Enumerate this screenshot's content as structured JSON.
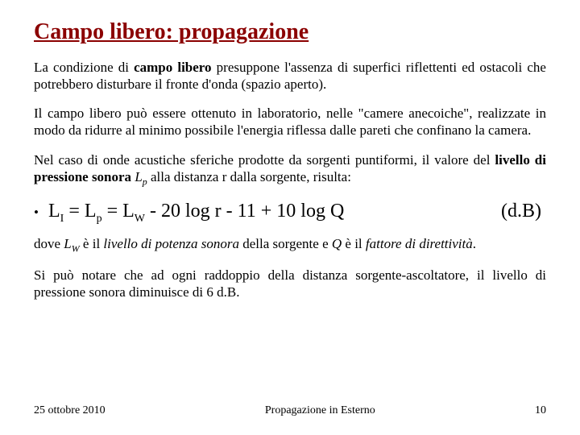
{
  "colors": {
    "title": "#8b0000",
    "text": "#000000",
    "background": "#ffffff"
  },
  "fonts": {
    "family": "Times New Roman",
    "title_size_pt": 28,
    "body_size_pt": 17,
    "equation_size_pt": 24,
    "footer_size_pt": 14
  },
  "title": "Campo libero: propagazione",
  "p1a": "La condizione di ",
  "p1b": "campo libero",
  "p1c": " presuppone l'assenza di superfici riflettenti ed ostacoli che potrebbero disturbare il fronte d'onda (spazio aperto).",
  "p2": "Il campo libero può essere ottenuto in laboratorio, nelle \"camere anecoiche\", realizzate in modo da ridurre al minimo possibile l'energia riflessa dalle pareti che confinano la camera.",
  "p3a": "Nel caso di onde acustiche sferiche prodotte da sorgenti puntiformi, il valore del ",
  "p3b": "livello di pressione sonora",
  "p3c": " ",
  "p3d": "L",
  "p3e": "p",
  "p3f": " alla distanza r dalla sorgente, risulta:",
  "bullet": "•",
  "eq": {
    "L": "L",
    "I": "I",
    "eq1": " = ",
    "p": "p",
    "W": "W",
    "mid": " - 20 log r - 11 + 10 log Q"
  },
  "db": "(d.B)",
  "p4a": "dove ",
  "p4b": "L",
  "p4c": "W",
  "p4d": " è il ",
  "p4e": "livello di potenza sonora",
  "p4f": " della sorgente e ",
  "p4g": "Q",
  "p4h": " è il ",
  "p4i": "fattore di direttività",
  "p4j": ".",
  "p5": "Si può notare che ad ogni raddoppio della distanza sorgente-ascoltatore, il livello di pressione sonora diminuisce di 6 d.B.",
  "footer": {
    "date": "25 ottobre 2010",
    "center": "Propagazione in Esterno",
    "page": "10"
  }
}
